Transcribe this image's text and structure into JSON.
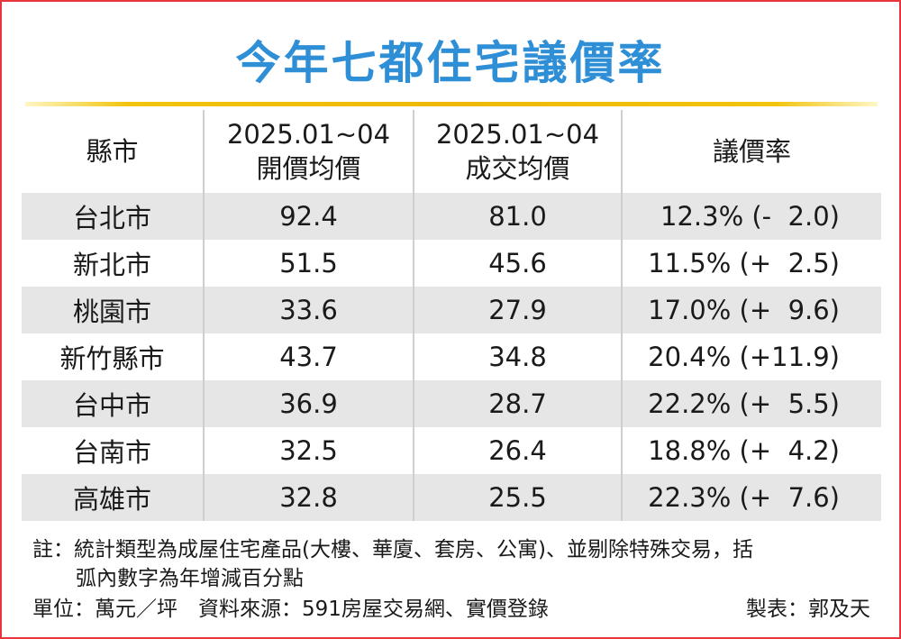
{
  "title": "今年七都住宅議價率",
  "colors": {
    "title": "#2f8fd6",
    "accent_bar": "#f0b800",
    "frame": "#e8353b",
    "row_shade": "#e6e6e6"
  },
  "chart_data": {
    "type": "table",
    "columns": [
      {
        "line1": "縣市",
        "line2": ""
      },
      {
        "line1": "2025.01~04",
        "line2": "開價均價"
      },
      {
        "line1": "2025.01~04",
        "line2": "成交均價"
      },
      {
        "line1": "議價率",
        "line2": ""
      }
    ],
    "rows": [
      {
        "city": "台北市",
        "ask": "92.4",
        "deal": "81.0",
        "rate": "12.3% (-  2.0)"
      },
      {
        "city": "新北市",
        "ask": "51.5",
        "deal": "45.6",
        "rate": "11.5% (+  2.5)"
      },
      {
        "city": "桃園市",
        "ask": "33.6",
        "deal": "27.9",
        "rate": "17.0% (+  9.6)"
      },
      {
        "city": "新竹縣市",
        "ask": "43.7",
        "deal": "34.8",
        "rate": "20.4% (+11.9)"
      },
      {
        "city": "台中市",
        "ask": "36.9",
        "deal": "28.7",
        "rate": "22.2% (+  5.5)"
      },
      {
        "city": "台南市",
        "ask": "32.5",
        "deal": "26.4",
        "rate": "18.8% (+  4.2)"
      },
      {
        "city": "高雄市",
        "ask": "32.8",
        "deal": "25.5",
        "rate": "22.3% (+  7.6)"
      }
    ]
  },
  "footer": {
    "note_line1": "註：統計類型為成屋住宅產品(大樓、華廈、套房、公寓)、並剔除特殊交易，括",
    "note_line2": "弧內數字為年增減百分點",
    "unit_source": "單位：萬元／坪　資料來源：591房屋交易網、實價登錄",
    "credit": "製表：郭及天"
  }
}
